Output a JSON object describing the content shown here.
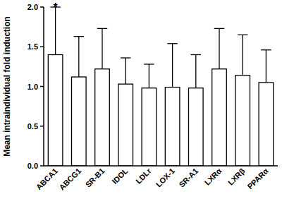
{
  "chart_data": {
    "type": "bar",
    "y_label": "Mean intraindividual fold induction",
    "categories": [
      "ABCA1",
      "ABCG1",
      "SR-B1",
      "IDOL",
      "LDLr",
      "LOX-1",
      "SR-A1",
      "LXRα",
      "LXRβ",
      "PPARα"
    ],
    "values": [
      1.4,
      1.12,
      1.22,
      1.03,
      0.98,
      0.99,
      0.98,
      1.22,
      1.14,
      1.05
    ],
    "errors": [
      0.6,
      0.51,
      0.51,
      0.33,
      0.3,
      0.55,
      0.42,
      0.51,
      0.51,
      0.41
    ],
    "color": "#ffffff",
    "ylim": [
      0,
      2
    ],
    "yticks": [
      {
        "value": 0,
        "label": "0.0"
      },
      0.5,
      {
        "value": 1,
        "label": "1.0"
      },
      1.5,
      {
        "value": 2,
        "label": "2.0"
      }
    ],
    "grid": false,
    "annotations": [
      {
        "text": "*",
        "x": "ABCA1"
      }
    ]
  }
}
